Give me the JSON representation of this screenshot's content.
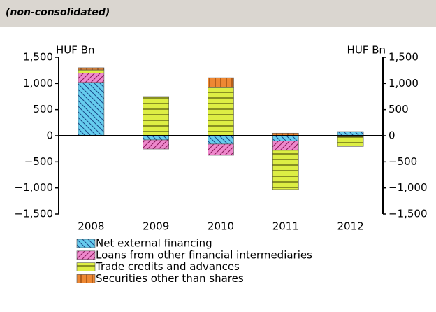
{
  "chart_data": {
    "type": "stacked_bar",
    "subtitle": "(non-consolidated)",
    "y_unit": "HUF Bn",
    "y2_unit": "HUF Bn",
    "categories": [
      "2008",
      "2009",
      "2010",
      "2011",
      "2012"
    ],
    "series": [
      {
        "name": "Net external financing",
        "color": "#66ccee",
        "values": [
          1020,
          -80,
          -160,
          -100,
          80
        ]
      },
      {
        "name": "Loans from other financial intermediaries",
        "color": "#ee88cc",
        "values": [
          180,
          -175,
          -215,
          -180,
          -15
        ]
      },
      {
        "name": "Trade credits and advances",
        "color": "#ddee44",
        "values": [
          60,
          750,
          920,
          -750,
          -190
        ]
      },
      {
        "name": "Securities other than shares",
        "color": "#ee8833",
        "values": [
          40,
          0,
          190,
          50,
          0
        ]
      }
    ],
    "ylim": [
      -1500,
      1500
    ],
    "yticks": [
      {
        "value": -1500,
        "label": "−1,500"
      },
      {
        "value": -1000,
        "label": "−1,000"
      },
      {
        "value": -500,
        "label": "−500"
      },
      0,
      500,
      {
        "value": 1000,
        "label": "1,000"
      },
      {
        "value": 1500,
        "label": "1,500"
      }
    ],
    "y2lim": [
      -1500,
      1500
    ],
    "y2ticks": [
      {
        "value": -1500,
        "label": "−1,500"
      },
      {
        "value": -1000,
        "label": "−1,000"
      },
      {
        "value": -500,
        "label": "−500"
      },
      0,
      500,
      {
        "value": 1000,
        "label": "1,000"
      },
      {
        "value": 1500,
        "label": "1,500"
      }
    ]
  }
}
